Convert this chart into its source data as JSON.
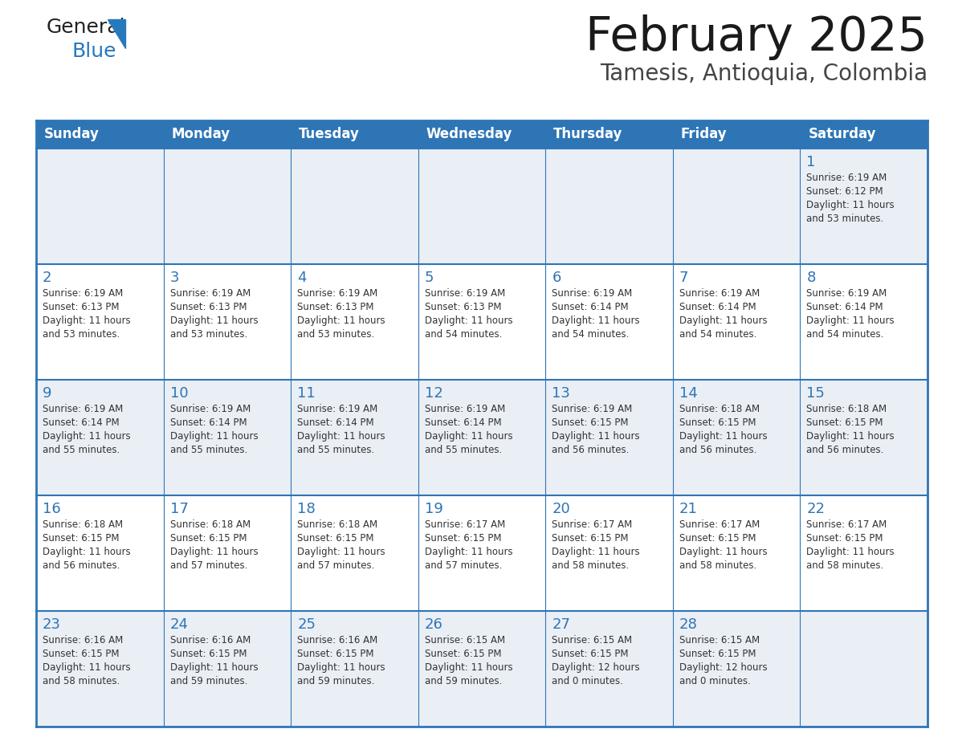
{
  "title": "February 2025",
  "subtitle": "Tamesis, Antioquia, Colombia",
  "days_of_week": [
    "Sunday",
    "Monday",
    "Tuesday",
    "Wednesday",
    "Thursday",
    "Friday",
    "Saturday"
  ],
  "header_bg": "#2E75B6",
  "header_text": "#FFFFFF",
  "cell_bg_white": "#FFFFFF",
  "cell_bg_gray": "#F0F4F8",
  "border_color": "#2E75B6",
  "day_num_color": "#2E75B6",
  "text_color": "#333333",
  "logo_general_color": "#222222",
  "logo_blue_color": "#2779BD",
  "calendar_data": [
    [
      {
        "day": null,
        "info": null
      },
      {
        "day": null,
        "info": null
      },
      {
        "day": null,
        "info": null
      },
      {
        "day": null,
        "info": null
      },
      {
        "day": null,
        "info": null
      },
      {
        "day": null,
        "info": null
      },
      {
        "day": 1,
        "info": "Sunrise: 6:19 AM\nSunset: 6:12 PM\nDaylight: 11 hours\nand 53 minutes."
      }
    ],
    [
      {
        "day": 2,
        "info": "Sunrise: 6:19 AM\nSunset: 6:13 PM\nDaylight: 11 hours\nand 53 minutes."
      },
      {
        "day": 3,
        "info": "Sunrise: 6:19 AM\nSunset: 6:13 PM\nDaylight: 11 hours\nand 53 minutes."
      },
      {
        "day": 4,
        "info": "Sunrise: 6:19 AM\nSunset: 6:13 PM\nDaylight: 11 hours\nand 53 minutes."
      },
      {
        "day": 5,
        "info": "Sunrise: 6:19 AM\nSunset: 6:13 PM\nDaylight: 11 hours\nand 54 minutes."
      },
      {
        "day": 6,
        "info": "Sunrise: 6:19 AM\nSunset: 6:14 PM\nDaylight: 11 hours\nand 54 minutes."
      },
      {
        "day": 7,
        "info": "Sunrise: 6:19 AM\nSunset: 6:14 PM\nDaylight: 11 hours\nand 54 minutes."
      },
      {
        "day": 8,
        "info": "Sunrise: 6:19 AM\nSunset: 6:14 PM\nDaylight: 11 hours\nand 54 minutes."
      }
    ],
    [
      {
        "day": 9,
        "info": "Sunrise: 6:19 AM\nSunset: 6:14 PM\nDaylight: 11 hours\nand 55 minutes."
      },
      {
        "day": 10,
        "info": "Sunrise: 6:19 AM\nSunset: 6:14 PM\nDaylight: 11 hours\nand 55 minutes."
      },
      {
        "day": 11,
        "info": "Sunrise: 6:19 AM\nSunset: 6:14 PM\nDaylight: 11 hours\nand 55 minutes."
      },
      {
        "day": 12,
        "info": "Sunrise: 6:19 AM\nSunset: 6:14 PM\nDaylight: 11 hours\nand 55 minutes."
      },
      {
        "day": 13,
        "info": "Sunrise: 6:19 AM\nSunset: 6:15 PM\nDaylight: 11 hours\nand 56 minutes."
      },
      {
        "day": 14,
        "info": "Sunrise: 6:18 AM\nSunset: 6:15 PM\nDaylight: 11 hours\nand 56 minutes."
      },
      {
        "day": 15,
        "info": "Sunrise: 6:18 AM\nSunset: 6:15 PM\nDaylight: 11 hours\nand 56 minutes."
      }
    ],
    [
      {
        "day": 16,
        "info": "Sunrise: 6:18 AM\nSunset: 6:15 PM\nDaylight: 11 hours\nand 56 minutes."
      },
      {
        "day": 17,
        "info": "Sunrise: 6:18 AM\nSunset: 6:15 PM\nDaylight: 11 hours\nand 57 minutes."
      },
      {
        "day": 18,
        "info": "Sunrise: 6:18 AM\nSunset: 6:15 PM\nDaylight: 11 hours\nand 57 minutes."
      },
      {
        "day": 19,
        "info": "Sunrise: 6:17 AM\nSunset: 6:15 PM\nDaylight: 11 hours\nand 57 minutes."
      },
      {
        "day": 20,
        "info": "Sunrise: 6:17 AM\nSunset: 6:15 PM\nDaylight: 11 hours\nand 58 minutes."
      },
      {
        "day": 21,
        "info": "Sunrise: 6:17 AM\nSunset: 6:15 PM\nDaylight: 11 hours\nand 58 minutes."
      },
      {
        "day": 22,
        "info": "Sunrise: 6:17 AM\nSunset: 6:15 PM\nDaylight: 11 hours\nand 58 minutes."
      }
    ],
    [
      {
        "day": 23,
        "info": "Sunrise: 6:16 AM\nSunset: 6:15 PM\nDaylight: 11 hours\nand 58 minutes."
      },
      {
        "day": 24,
        "info": "Sunrise: 6:16 AM\nSunset: 6:15 PM\nDaylight: 11 hours\nand 59 minutes."
      },
      {
        "day": 25,
        "info": "Sunrise: 6:16 AM\nSunset: 6:15 PM\nDaylight: 11 hours\nand 59 minutes."
      },
      {
        "day": 26,
        "info": "Sunrise: 6:15 AM\nSunset: 6:15 PM\nDaylight: 11 hours\nand 59 minutes."
      },
      {
        "day": 27,
        "info": "Sunrise: 6:15 AM\nSunset: 6:15 PM\nDaylight: 12 hours\nand 0 minutes."
      },
      {
        "day": 28,
        "info": "Sunrise: 6:15 AM\nSunset: 6:15 PM\nDaylight: 12 hours\nand 0 minutes."
      },
      {
        "day": null,
        "info": null
      }
    ]
  ],
  "row_bg_colors": [
    "#EAEFF5",
    "#FFFFFF",
    "#EAEFF5",
    "#FFFFFF",
    "#EAEFF5"
  ]
}
